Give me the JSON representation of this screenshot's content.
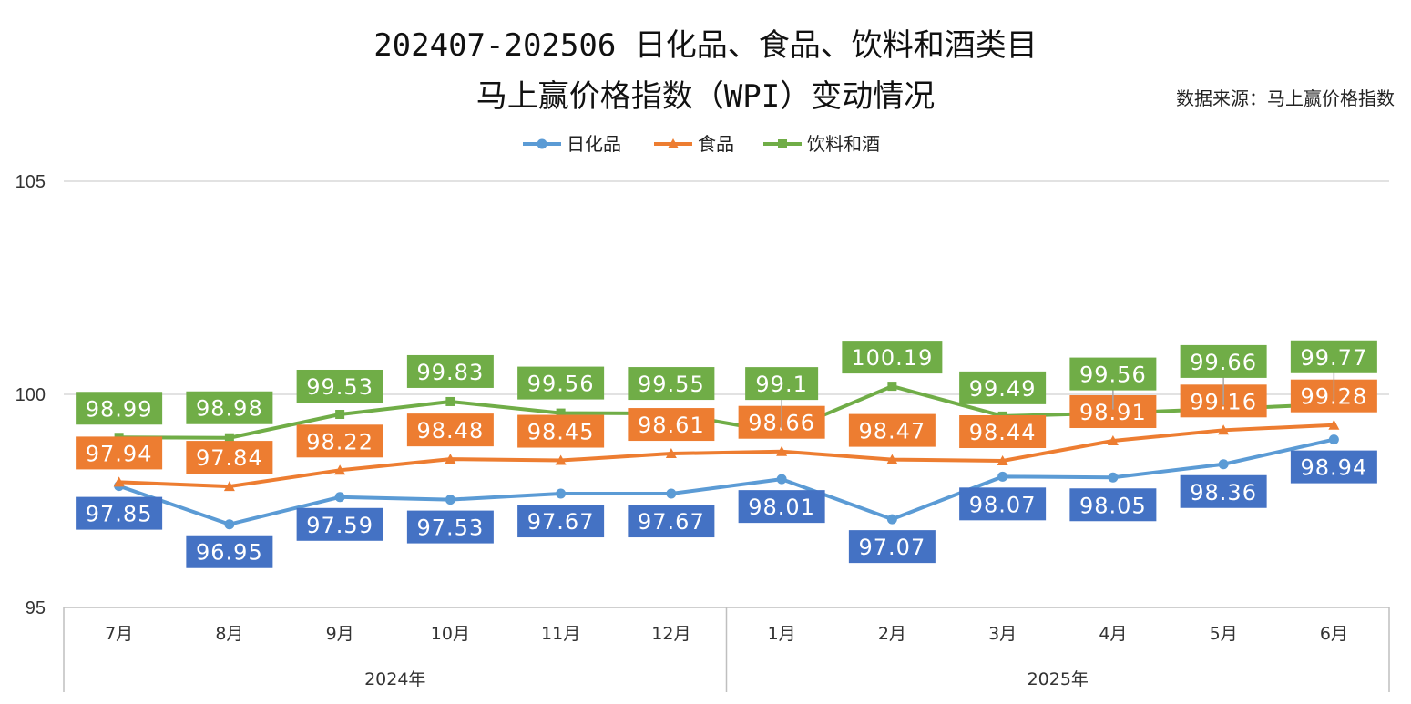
{
  "chart_data": {
    "type": "line",
    "title_line1": "202407-202506 日化品、食品、饮料和酒类目",
    "title_line2": "马上赢价格指数（WPI）变动情况",
    "source": "数据来源：马上赢价格指数",
    "categories": [
      "7月",
      "8月",
      "9月",
      "10月",
      "11月",
      "12月",
      "1月",
      "2月",
      "3月",
      "4月",
      "5月",
      "6月"
    ],
    "groups": [
      {
        "label": "2024年",
        "count": 6
      },
      {
        "label": "2025年",
        "count": 6
      }
    ],
    "ylim": [
      95,
      105
    ],
    "yticks": [
      95,
      100,
      105
    ],
    "grid": true,
    "legend": "top",
    "series": [
      {
        "name": "日化品",
        "marker": "circle",
        "line_color": "#5B9BD5",
        "label_color": "#4472C4",
        "values": [
          97.85,
          96.95,
          97.59,
          97.53,
          97.67,
          97.67,
          98.01,
          97.07,
          98.07,
          98.05,
          98.36,
          98.94
        ]
      },
      {
        "name": "食品",
        "marker": "triangle",
        "line_color": "#ED7D31",
        "label_color": "#ED7D31",
        "values": [
          97.94,
          97.84,
          98.22,
          98.48,
          98.45,
          98.61,
          98.66,
          98.47,
          98.44,
          98.91,
          99.16,
          99.28
        ]
      },
      {
        "name": "饮料和酒",
        "marker": "square",
        "line_color": "#70AD47",
        "label_color": "#70AD47",
        "values": [
          98.99,
          98.98,
          99.53,
          99.83,
          99.56,
          99.55,
          99.1,
          100.19,
          99.49,
          99.56,
          99.66,
          99.77
        ]
      }
    ]
  }
}
